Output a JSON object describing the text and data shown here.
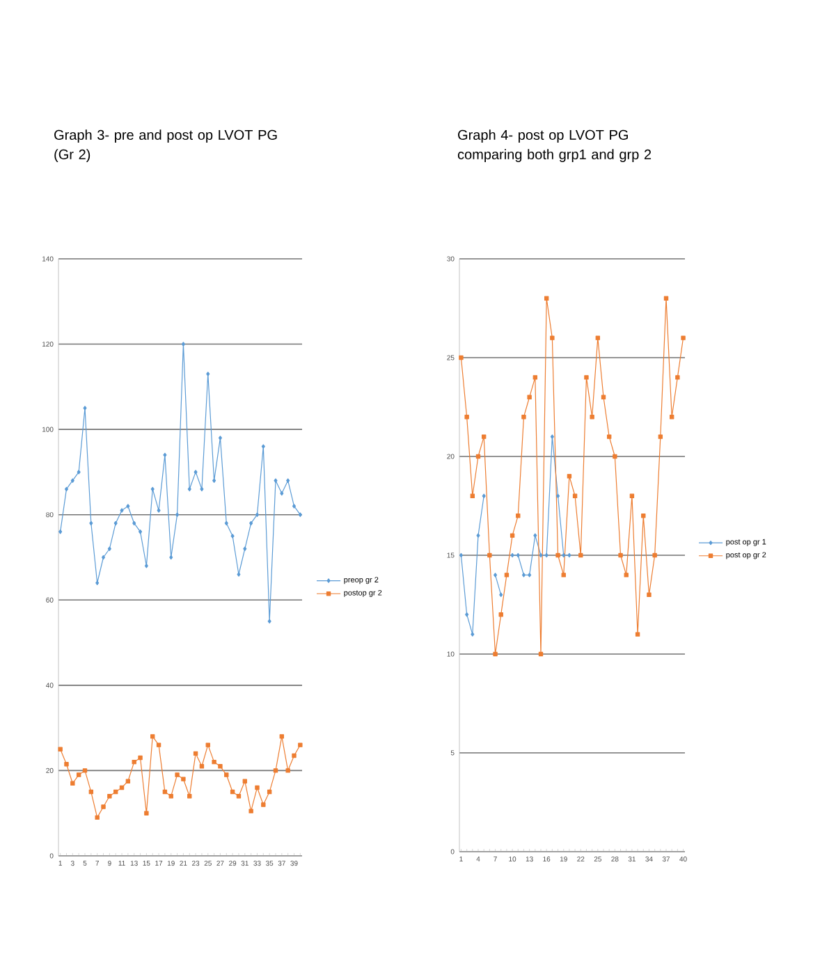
{
  "chart_data": [
    {
      "type": "line",
      "title": "Graph 3- pre and post op LVOT PG  (Gr 2)",
      "categories": [
        "1",
        null,
        "3",
        null,
        "5",
        null,
        "7",
        null,
        "9",
        null,
        "11",
        null,
        "13",
        null,
        "15",
        null,
        "17",
        null,
        "19",
        null,
        "21",
        null,
        "23",
        null,
        "25",
        null,
        "27",
        null,
        "29",
        null,
        "31",
        null,
        "33",
        null,
        "35",
        null,
        "37",
        null,
        "39",
        null
      ],
      "series": [
        {
          "name": "preop gr 2",
          "color": "#5b9bd5",
          "marker": "diamond",
          "values": [
            76,
            86,
            88,
            90,
            105,
            78,
            64,
            70,
            72,
            78,
            81,
            82,
            78,
            76,
            68,
            86,
            81,
            94,
            70,
            80,
            120,
            86,
            90,
            86,
            113,
            88,
            98,
            78,
            75,
            66,
            72,
            78,
            80,
            96,
            55,
            88,
            85,
            88,
            82,
            80
          ]
        },
        {
          "name": "postop gr 2",
          "color": "#ed7d31",
          "marker": "square",
          "values": [
            25,
            21.5,
            17,
            19,
            20,
            15,
            9,
            11.5,
            14,
            15,
            16,
            17.5,
            22,
            23,
            10,
            28,
            26,
            15,
            14,
            19,
            18,
            14,
            24,
            21,
            26,
            22,
            21,
            19,
            15,
            14,
            17.5,
            10.5,
            16,
            12,
            15,
            20,
            28,
            20,
            23.5,
            26
          ]
        }
      ],
      "ylim": [
        0,
        140
      ],
      "yticks": [
        0,
        20,
        40,
        60,
        80,
        100,
        120,
        140
      ],
      "grid": "y",
      "legend": "right"
    },
    {
      "type": "line",
      "title": "Graph 4- post op LVOT PG comparing both grp1 and grp 2",
      "categories": [
        "1",
        null,
        null,
        "4",
        null,
        null,
        "7",
        null,
        null,
        "10",
        null,
        null,
        "13",
        null,
        null,
        "16",
        null,
        null,
        "19",
        null,
        null,
        "22",
        null,
        null,
        "25",
        null,
        null,
        "28",
        null,
        null,
        "31",
        null,
        null,
        "34",
        null,
        null,
        "37",
        null,
        null,
        "40"
      ],
      "series": [
        {
          "name": "post op gr 1",
          "color": "#5b9bd5",
          "marker": "diamond",
          "values": [
            15,
            12,
            11,
            16,
            18,
            null,
            14,
            13,
            null,
            15,
            15,
            14,
            14,
            16,
            15,
            15,
            21,
            18,
            15,
            15,
            null,
            null,
            null,
            null,
            null,
            null,
            null,
            null,
            null,
            null,
            null,
            null,
            null,
            null,
            null,
            null,
            null,
            null,
            null,
            null
          ]
        },
        {
          "name": "post op gr 2",
          "color": "#ed7d31",
          "marker": "square",
          "values": [
            25,
            22,
            18,
            20,
            21,
            15,
            10,
            12,
            14,
            16,
            17,
            22,
            23,
            24,
            10,
            28,
            26,
            15,
            14,
            19,
            18,
            15,
            24,
            22,
            26,
            23,
            21,
            20,
            15,
            14,
            18,
            11,
            17,
            13,
            15,
            21,
            28,
            22,
            24,
            26
          ]
        }
      ],
      "ylim": [
        0,
        30
      ],
      "yticks": [
        0,
        5,
        10,
        15,
        20,
        25,
        30
      ],
      "grid": "y",
      "legend": "right"
    }
  ]
}
